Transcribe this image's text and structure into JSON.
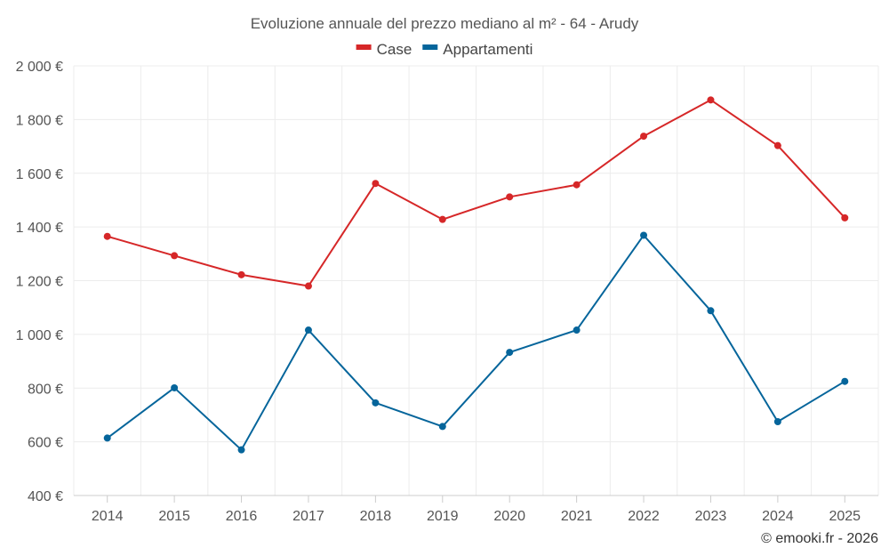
{
  "chart_data": {
    "type": "line",
    "title": "Evoluzione annuale del prezzo mediano al m² - 64 - Arudy",
    "categories": [
      "2014",
      "2015",
      "2016",
      "2017",
      "2018",
      "2019",
      "2020",
      "2021",
      "2022",
      "2023",
      "2024",
      "2025"
    ],
    "series": [
      {
        "name": "Case",
        "color": "#d62728",
        "values": [
          1365,
          1293,
          1222,
          1180,
          1562,
          1428,
          1512,
          1557,
          1738,
          1873,
          1703,
          1434
        ]
      },
      {
        "name": "Appartamenti",
        "color": "#05659b",
        "values": [
          614,
          801,
          570,
          1016,
          745,
          657,
          933,
          1016,
          1369,
          1088,
          675,
          825
        ]
      }
    ],
    "ylim": [
      400,
      2000
    ],
    "yticks": [
      400,
      600,
      800,
      1000,
      1200,
      1400,
      1600,
      1800,
      2000
    ],
    "ytick_labels": [
      "400 €",
      "600 €",
      "800 €",
      "1 000 €",
      "1 200 €",
      "1 400 €",
      "1 600 €",
      "1 800 €",
      "2 000 €"
    ],
    "xlabel": "",
    "ylabel": "",
    "grid": true,
    "legend": "top-center"
  },
  "credit": "© emooki.fr - 2026"
}
